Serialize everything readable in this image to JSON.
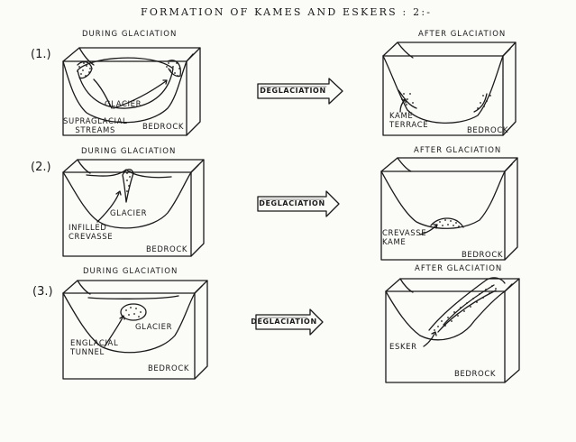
{
  "title": "FORMATION OF KAMES AND ESKERS : 2:-",
  "arrow_label": "DEGLACIATION",
  "panels": [
    {
      "number": "(1.)",
      "during": {
        "header": "DURING GLACIATION",
        "labels": {
          "glacier": "GLACIER",
          "streams": "SUPRAGLACIAL\nSTREAMS",
          "bedrock": "BEDROCK"
        }
      },
      "after": {
        "header": "AFTER GLACIATION",
        "labels": {
          "feature": "KAME\nTERRACE",
          "bedrock": "BEDROCK"
        }
      }
    },
    {
      "number": "(2.)",
      "during": {
        "header": "DURING GLACIATION",
        "labels": {
          "glacier": "GLACIER",
          "feature": "INFILLED\nCREVASSE",
          "bedrock": "BEDROCK"
        }
      },
      "after": {
        "header": "AFTER GLACIATION",
        "labels": {
          "feature": "CREVASSE\nKAME",
          "bedrock": "BEDROCK"
        }
      }
    },
    {
      "number": "(3.)",
      "during": {
        "header": "DURING GLACIATION",
        "labels": {
          "glacier": "GLACIER",
          "feature": "ENGLACIAL\nTUNNEL",
          "bedrock": "BEDROCK"
        }
      },
      "after": {
        "header": "AFTER GLACIATION",
        "labels": {
          "feature": "ESKER",
          "bedrock": "BEDROCK"
        }
      }
    }
  ]
}
